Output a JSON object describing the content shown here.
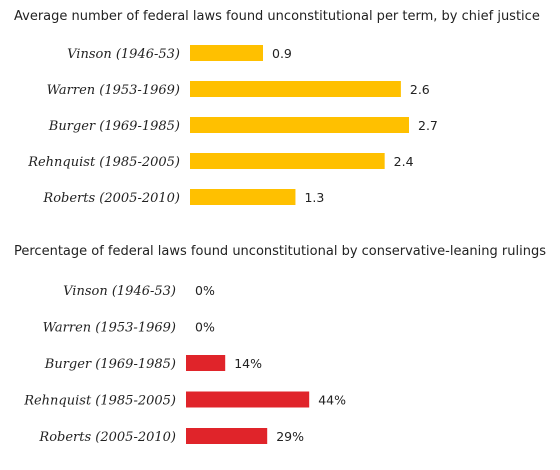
{
  "chart_data": [
    {
      "type": "bar",
      "orientation": "horizontal",
      "title": "Average number of federal laws found unconstitutional per term, by chief justice",
      "categories": [
        "Vinson (1946-53)",
        "Warren (1953-1969)",
        "Burger (1969-1985)",
        "Rehnquist (1985-2005)",
        "Roberts (2005-2010)"
      ],
      "values": [
        0.9,
        2.6,
        2.7,
        2.4,
        1.3
      ],
      "value_labels": [
        "0.9",
        "2.6",
        "2.7",
        "2.4",
        "1.3"
      ],
      "xlim": [
        0,
        2.7
      ],
      "color": "#ffc000",
      "grid": false
    },
    {
      "type": "bar",
      "orientation": "horizontal",
      "title": "Percentage of federal laws found unconstitutional by conservative-leaning rulings",
      "categories": [
        "Vinson (1946-53)",
        "Warren (1953-1969)",
        "Burger (1969-1985)",
        "Rehnquist (1985-2005)",
        "Roberts (2005-2010)"
      ],
      "values": [
        0,
        0,
        14,
        44,
        29
      ],
      "value_labels": [
        "0%",
        "0%",
        "14%",
        "44%",
        "29%"
      ],
      "xlim": [
        0,
        100
      ],
      "color": "#e0242a",
      "grid": false
    }
  ]
}
